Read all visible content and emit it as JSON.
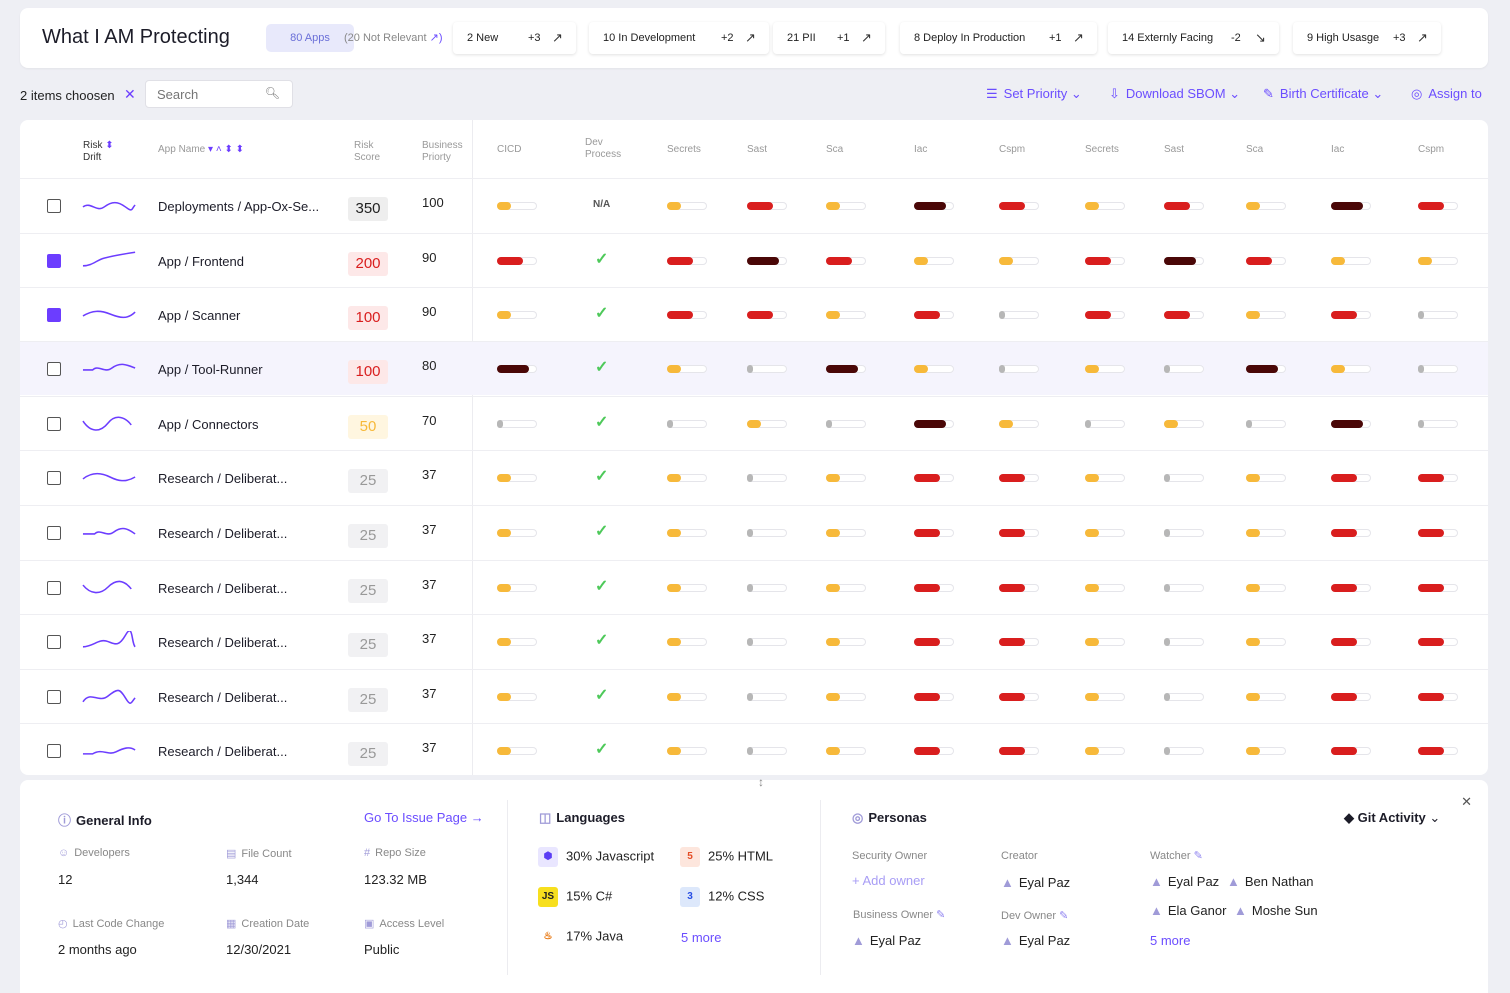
{
  "header": {
    "title": "What I AM Protecting",
    "apps_pill": "80 Apps",
    "not_relevant": "(20 Not Relevant",
    "stats": [
      {
        "label": "2 New",
        "delta": "+3",
        "dir": "up"
      },
      {
        "label": "10 In Development",
        "delta": "+2",
        "dir": "up"
      },
      {
        "label": "21 PII",
        "delta": "+1",
        "dir": "up"
      },
      {
        "label": "8 Deploy In Production",
        "delta": "+1",
        "dir": "up"
      },
      {
        "label": "14 Externly Facing",
        "delta": "-2",
        "dir": "down"
      },
      {
        "label": "9 High Usasge",
        "delta": "+3",
        "dir": "up"
      }
    ]
  },
  "toolbar": {
    "chosen_text": "2 items choosen",
    "search_placeholder": "Search",
    "set_priority": "Set Priority",
    "download_sbom": "Download SBOM",
    "birth_certificate": "Birth Certificate",
    "assign_to": "Assign to"
  },
  "columns": {
    "risk_drift_1": "Risk",
    "risk_drift_2": "Drift",
    "app_name": "App Name",
    "risk_score_1": "Risk",
    "risk_score_2": "Score",
    "business_priority_1": "Business",
    "business_priority_2": "Priorty",
    "metrics": [
      "CICD",
      "Dev Process",
      "Secrets",
      "Sast",
      "Sca",
      "Iac",
      "Cspm",
      "Secrets",
      "Sast",
      "Sca",
      "Iac",
      "Cspm"
    ]
  },
  "colors": {
    "low": "#f7b93a",
    "med": "#d91e1e",
    "high": "#4a0707",
    "none": "#b7b7b7",
    "accent": "#6c3dff"
  },
  "rows": [
    {
      "checked": false,
      "name": "Deployments / App-Ox-Se...",
      "score": "350",
      "biz": "100",
      "levels": [
        "low",
        "na",
        "low",
        "med",
        "low",
        "high",
        "med",
        "low",
        "med",
        "low",
        "high",
        "med"
      ]
    },
    {
      "checked": true,
      "name": "App / Frontend",
      "score": "200",
      "biz": "90",
      "levels": [
        "med",
        "ok",
        "med",
        "high",
        "med",
        "low",
        "low",
        "med",
        "high",
        "med",
        "low",
        "low"
      ]
    },
    {
      "checked": true,
      "name": "App / Scanner",
      "score": "100",
      "biz": "90",
      "levels": [
        "low",
        "ok",
        "med",
        "med",
        "low",
        "med",
        "none",
        "med",
        "med",
        "low",
        "med",
        "none"
      ]
    },
    {
      "checked": false,
      "name": "App / Tool-Runner",
      "score": "100",
      "biz": "80",
      "levels": [
        "high",
        "ok",
        "low",
        "none",
        "high",
        "low",
        "none",
        "low",
        "none",
        "high",
        "low",
        "none"
      ]
    },
    {
      "checked": false,
      "name": "App / Connectors",
      "score": "50",
      "biz": "70",
      "levels": [
        "none",
        "ok",
        "none",
        "low",
        "none",
        "high",
        "low",
        "none",
        "low",
        "none",
        "high",
        "none"
      ]
    },
    {
      "checked": false,
      "name": "Research / Deliberat...",
      "score": "25",
      "biz": "37",
      "levels": [
        "low",
        "ok",
        "low",
        "none",
        "low",
        "med",
        "med",
        "low",
        "none",
        "low",
        "med",
        "med"
      ]
    },
    {
      "checked": false,
      "name": "Research / Deliberat...",
      "score": "25",
      "biz": "37",
      "levels": [
        "low",
        "ok",
        "low",
        "none",
        "low",
        "med",
        "med",
        "low",
        "none",
        "low",
        "med",
        "med"
      ]
    },
    {
      "checked": false,
      "name": "Research / Deliberat...",
      "score": "25",
      "biz": "37",
      "levels": [
        "low",
        "ok",
        "low",
        "none",
        "low",
        "med",
        "med",
        "low",
        "none",
        "low",
        "med",
        "med"
      ]
    },
    {
      "checked": false,
      "name": "Research / Deliberat...",
      "score": "25",
      "biz": "37",
      "levels": [
        "low",
        "ok",
        "low",
        "none",
        "low",
        "med",
        "med",
        "low",
        "none",
        "low",
        "med",
        "med"
      ]
    },
    {
      "checked": false,
      "name": "Research / Deliberat...",
      "score": "25",
      "biz": "37",
      "levels": [
        "low",
        "ok",
        "low",
        "none",
        "low",
        "med",
        "med",
        "low",
        "none",
        "low",
        "med",
        "med"
      ]
    },
    {
      "checked": false,
      "name": "Research / Deliberat...",
      "score": "25",
      "biz": "37",
      "levels": [
        "low",
        "ok",
        "low",
        "none",
        "low",
        "med",
        "med",
        "low",
        "none",
        "low",
        "med",
        "med"
      ]
    }
  ],
  "na_text": "N/A",
  "details": {
    "general_info": "General Info",
    "go_to_issue": "Go To Issue Page",
    "developers_label": "Developers",
    "developers": "12",
    "file_count_label": "File Count",
    "file_count": "1,344",
    "repo_size_label": "Repo Size",
    "repo_size": "123.32 MB",
    "last_change_label": "Last Code Change",
    "last_change": "2 months ago",
    "creation_label": "Creation Date",
    "creation": "12/30/2021",
    "access_label": "Access Level",
    "access": "Public",
    "languages_title": "Languages",
    "languages": [
      "30% Javascript",
      "25% HTML",
      "15% C#",
      "12% CSS",
      "17% Java"
    ],
    "languages_more": "5 more",
    "personas_title": "Personas",
    "git_activity": "Git Activity",
    "security_owner_label": "Security Owner",
    "add_owner": "Add owner",
    "creator_label": "Creator",
    "creator": "Eyal Paz",
    "watcher_label": "Watcher",
    "watchers": [
      "Eyal Paz",
      "Ben Nathan",
      "Ela Ganor",
      "Moshe Sun"
    ],
    "watchers_more": "5 more",
    "business_owner_label": "Business Owner",
    "business_owner": "Eyal Paz",
    "dev_owner_label": "Dev Owner",
    "dev_owner": "Eyal Paz"
  }
}
